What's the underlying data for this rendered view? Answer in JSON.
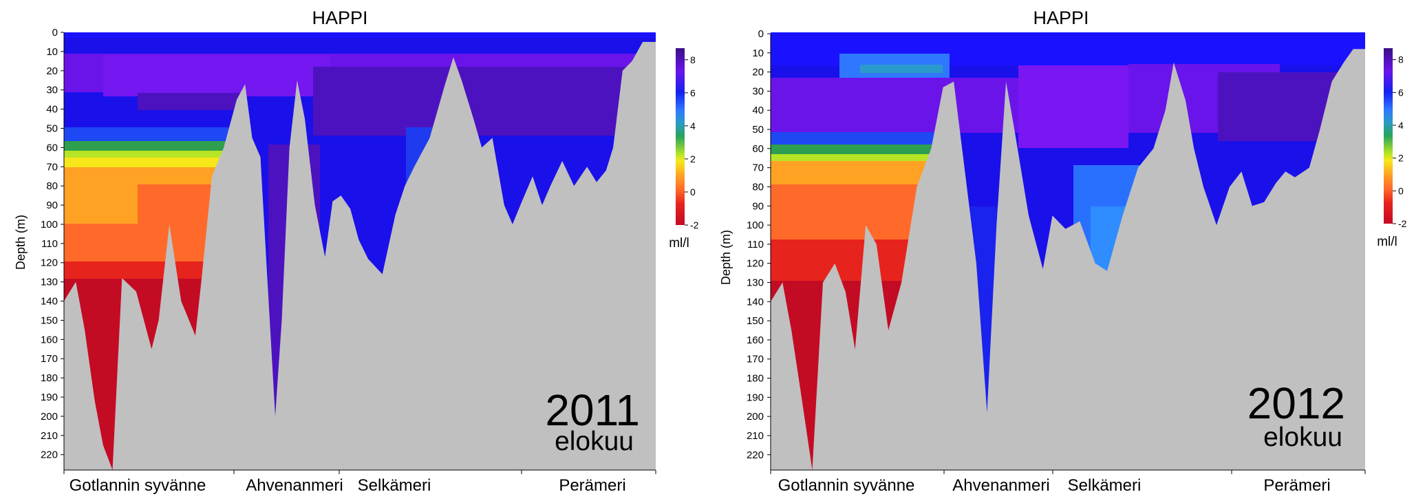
{
  "chart_data": [
    {
      "type": "heatmap",
      "title": "HAPPI",
      "ylabel": "Depth (m)",
      "ylim": [
        0,
        228
      ],
      "yticks": [
        0,
        10,
        20,
        30,
        40,
        50,
        60,
        70,
        80,
        90,
        100,
        110,
        120,
        130,
        140,
        150,
        160,
        170,
        180,
        190,
        200,
        210,
        220
      ],
      "x_regions": [
        "Gotlannin syvänne",
        "Ahvenanmeri",
        "Selkämeri",
        "Perämeri"
      ],
      "year_label": "2011",
      "month_label": "elokuu",
      "colorbar": {
        "unit": "ml/l",
        "ticks": [
          8,
          6,
          4,
          2,
          0,
          -2
        ],
        "range": [
          -2,
          8.7
        ]
      },
      "profile": [
        {
          "pos": 0.0,
          "bottom": 140
        },
        {
          "pos": 0.02,
          "bottom": 130
        },
        {
          "pos": 0.035,
          "bottom": 155
        },
        {
          "pos": 0.052,
          "bottom": 192
        },
        {
          "pos": 0.066,
          "bottom": 215
        },
        {
          "pos": 0.082,
          "bottom": 228
        },
        {
          "pos": 0.098,
          "bottom": 128
        },
        {
          "pos": 0.122,
          "bottom": 135
        },
        {
          "pos": 0.148,
          "bottom": 165
        },
        {
          "pos": 0.16,
          "bottom": 150
        },
        {
          "pos": 0.178,
          "bottom": 100
        },
        {
          "pos": 0.198,
          "bottom": 140
        },
        {
          "pos": 0.222,
          "bottom": 158
        },
        {
          "pos": 0.232,
          "bottom": 130
        },
        {
          "pos": 0.25,
          "bottom": 75
        },
        {
          "pos": 0.27,
          "bottom": 60
        },
        {
          "pos": 0.292,
          "bottom": 35
        },
        {
          "pos": 0.306,
          "bottom": 27
        },
        {
          "pos": 0.318,
          "bottom": 55
        },
        {
          "pos": 0.332,
          "bottom": 65
        },
        {
          "pos": 0.343,
          "bottom": 125
        },
        {
          "pos": 0.357,
          "bottom": 200
        },
        {
          "pos": 0.368,
          "bottom": 150
        },
        {
          "pos": 0.381,
          "bottom": 60
        },
        {
          "pos": 0.394,
          "bottom": 25
        },
        {
          "pos": 0.407,
          "bottom": 45
        },
        {
          "pos": 0.424,
          "bottom": 90
        },
        {
          "pos": 0.441,
          "bottom": 117
        },
        {
          "pos": 0.454,
          "bottom": 88
        },
        {
          "pos": 0.468,
          "bottom": 85
        },
        {
          "pos": 0.484,
          "bottom": 92
        },
        {
          "pos": 0.498,
          "bottom": 108
        },
        {
          "pos": 0.514,
          "bottom": 118
        },
        {
          "pos": 0.538,
          "bottom": 126
        },
        {
          "pos": 0.56,
          "bottom": 95
        },
        {
          "pos": 0.576,
          "bottom": 80
        },
        {
          "pos": 0.592,
          "bottom": 70
        },
        {
          "pos": 0.618,
          "bottom": 55
        },
        {
          "pos": 0.643,
          "bottom": 28
        },
        {
          "pos": 0.658,
          "bottom": 13
        },
        {
          "pos": 0.672,
          "bottom": 25
        },
        {
          "pos": 0.692,
          "bottom": 45
        },
        {
          "pos": 0.706,
          "bottom": 60
        },
        {
          "pos": 0.724,
          "bottom": 55
        },
        {
          "pos": 0.744,
          "bottom": 90
        },
        {
          "pos": 0.758,
          "bottom": 100
        },
        {
          "pos": 0.774,
          "bottom": 88
        },
        {
          "pos": 0.792,
          "bottom": 75
        },
        {
          "pos": 0.808,
          "bottom": 90
        },
        {
          "pos": 0.822,
          "bottom": 80
        },
        {
          "pos": 0.842,
          "bottom": 67
        },
        {
          "pos": 0.862,
          "bottom": 80
        },
        {
          "pos": 0.884,
          "bottom": 70
        },
        {
          "pos": 0.9,
          "bottom": 78
        },
        {
          "pos": 0.916,
          "bottom": 72
        },
        {
          "pos": 0.928,
          "bottom": 60
        },
        {
          "pos": 0.944,
          "bottom": 20
        },
        {
          "pos": 0.96,
          "bottom": 15
        },
        {
          "pos": 0.978,
          "bottom": 5
        },
        {
          "pos": 1.0,
          "bottom": 5
        }
      ]
    },
    {
      "type": "heatmap",
      "title": "HAPPI",
      "ylabel": "Depth (m)",
      "ylim": [
        0,
        228
      ],
      "yticks": [
        0,
        10,
        20,
        30,
        40,
        50,
        60,
        70,
        80,
        90,
        100,
        110,
        120,
        130,
        140,
        150,
        160,
        170,
        180,
        190,
        200,
        210,
        220
      ],
      "x_regions": [
        "Gotlannin syvänne",
        "Ahvenanmeri",
        "Selkämeri",
        "Perämeri"
      ],
      "year_label": "2012",
      "month_label": "elokuu",
      "colorbar": {
        "unit": "ml/l",
        "ticks": [
          8,
          6,
          4,
          2,
          0,
          -2
        ],
        "range": [
          -2,
          8.7
        ]
      },
      "profile": [
        {
          "pos": 0.0,
          "bottom": 140
        },
        {
          "pos": 0.02,
          "bottom": 130
        },
        {
          "pos": 0.035,
          "bottom": 155
        },
        {
          "pos": 0.052,
          "bottom": 190
        },
        {
          "pos": 0.07,
          "bottom": 228
        },
        {
          "pos": 0.088,
          "bottom": 130
        },
        {
          "pos": 0.108,
          "bottom": 120
        },
        {
          "pos": 0.126,
          "bottom": 135
        },
        {
          "pos": 0.142,
          "bottom": 165
        },
        {
          "pos": 0.16,
          "bottom": 100
        },
        {
          "pos": 0.178,
          "bottom": 110
        },
        {
          "pos": 0.198,
          "bottom": 155
        },
        {
          "pos": 0.22,
          "bottom": 130
        },
        {
          "pos": 0.246,
          "bottom": 80
        },
        {
          "pos": 0.27,
          "bottom": 60
        },
        {
          "pos": 0.29,
          "bottom": 28
        },
        {
          "pos": 0.308,
          "bottom": 25
        },
        {
          "pos": 0.322,
          "bottom": 60
        },
        {
          "pos": 0.346,
          "bottom": 120
        },
        {
          "pos": 0.364,
          "bottom": 198
        },
        {
          "pos": 0.38,
          "bottom": 100
        },
        {
          "pos": 0.396,
          "bottom": 25
        },
        {
          "pos": 0.41,
          "bottom": 50
        },
        {
          "pos": 0.434,
          "bottom": 95
        },
        {
          "pos": 0.458,
          "bottom": 123
        },
        {
          "pos": 0.474,
          "bottom": 95
        },
        {
          "pos": 0.496,
          "bottom": 102
        },
        {
          "pos": 0.52,
          "bottom": 98
        },
        {
          "pos": 0.546,
          "bottom": 120
        },
        {
          "pos": 0.566,
          "bottom": 124
        },
        {
          "pos": 0.592,
          "bottom": 95
        },
        {
          "pos": 0.618,
          "bottom": 70
        },
        {
          "pos": 0.644,
          "bottom": 60
        },
        {
          "pos": 0.664,
          "bottom": 40
        },
        {
          "pos": 0.678,
          "bottom": 15
        },
        {
          "pos": 0.698,
          "bottom": 35
        },
        {
          "pos": 0.712,
          "bottom": 60
        },
        {
          "pos": 0.728,
          "bottom": 80
        },
        {
          "pos": 0.75,
          "bottom": 100
        },
        {
          "pos": 0.772,
          "bottom": 80
        },
        {
          "pos": 0.792,
          "bottom": 72
        },
        {
          "pos": 0.81,
          "bottom": 90
        },
        {
          "pos": 0.83,
          "bottom": 88
        },
        {
          "pos": 0.85,
          "bottom": 78
        },
        {
          "pos": 0.866,
          "bottom": 72
        },
        {
          "pos": 0.882,
          "bottom": 75
        },
        {
          "pos": 0.906,
          "bottom": 70
        },
        {
          "pos": 0.924,
          "bottom": 50
        },
        {
          "pos": 0.944,
          "bottom": 25
        },
        {
          "pos": 0.964,
          "bottom": 15
        },
        {
          "pos": 0.98,
          "bottom": 8
        },
        {
          "pos": 1.0,
          "bottom": 8
        }
      ]
    }
  ]
}
